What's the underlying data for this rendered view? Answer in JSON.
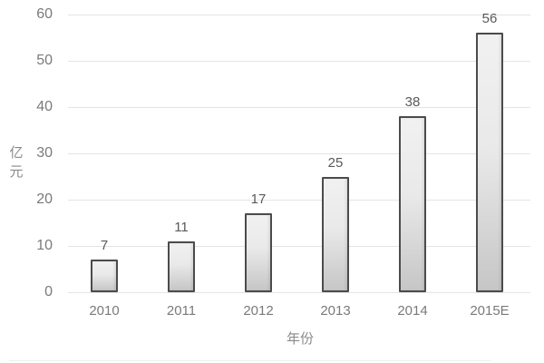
{
  "chart_data": {
    "type": "bar",
    "categories": [
      "2010",
      "2011",
      "2012",
      "2013",
      "2014",
      "2015E"
    ],
    "values": [
      7,
      11,
      17,
      25,
      38,
      56
    ],
    "title": "",
    "xlabel": "年份",
    "ylabel": "亿元",
    "ylim": [
      0,
      60
    ],
    "ytick_step": 10,
    "grid": "horizontal",
    "legend": "none",
    "data_labels": [
      7,
      11,
      17,
      25,
      38,
      56
    ],
    "colors": {
      "bar_fill_top": "#f1f1f1",
      "bar_fill_bottom": "#c6c6c6",
      "bar_border": "#4b4b4b",
      "gridline": "#e4e4e4",
      "tick_label": "#7a7a7a",
      "axis_title": "#8a8a8a",
      "value_label": "#595959",
      "background": "#ffffff"
    }
  }
}
